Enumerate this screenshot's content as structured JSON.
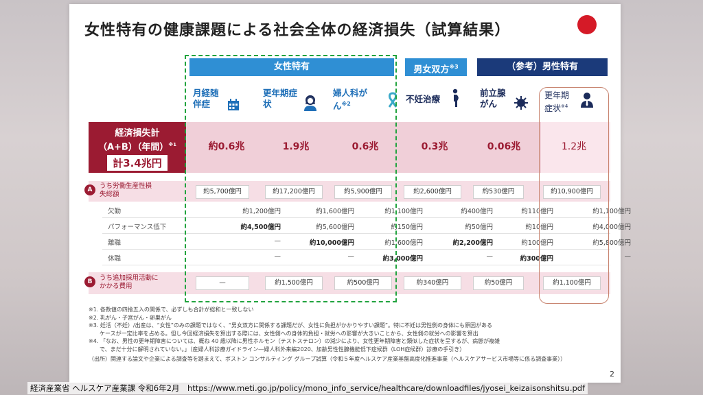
{
  "title": "女性特有の健康課題による社会全体の経済損失（試算結果）",
  "headers": {
    "female": "女性特有",
    "both": "男女双方",
    "both_note": "※3",
    "male": "（参考）男性特有"
  },
  "subheaders": [
    {
      "text": "月経随伴症",
      "note": "",
      "icon": "calendar-icon"
    },
    {
      "text": "更年期症状",
      "note": "",
      "icon": "woman-icon"
    },
    {
      "text": "婦人科がん",
      "note": "※2",
      "icon": "ribbon-icon"
    },
    {
      "text": "不妊治療",
      "note": "",
      "icon": "pregnant-icon"
    },
    {
      "text": "前立腺がん",
      "note": "",
      "icon": "virus-icon"
    },
    {
      "text": "更年期症状",
      "note": "※4",
      "icon": "man-icon"
    }
  ],
  "total": {
    "label1": "経済損失計",
    "label2": "（A+B）（年間）",
    "label_note": "※1",
    "sum": "計3.4兆円",
    "values": [
      "約0.6兆",
      "1.9兆",
      "0.6兆",
      "0.3兆",
      "0.06兆",
      "1.2兆"
    ]
  },
  "rowA": {
    "badge": "A",
    "label": "うち労働生産性損失総額",
    "values": [
      "約5,700億円",
      "約17,200億円",
      "約5,900億円",
      "約2,600億円",
      "約530億円",
      "約10,900億円"
    ]
  },
  "subrows": [
    {
      "name": "欠勤",
      "values": [
        "約1,200億円",
        "約1,600億円",
        "約1,100億円",
        "約400億円",
        "約110億円",
        "約1,100億円"
      ]
    },
    {
      "name": "パフォーマンス低下",
      "values": [
        "約4,500億円",
        "約5,600億円",
        "約150億円",
        "約50億円",
        "約10億円",
        "約4,000億円"
      ]
    },
    {
      "name": "離職",
      "values": [
        "—",
        "約10,000億円",
        "約1,600億円",
        "約2,200億円",
        "約100億円",
        "約5,800億円"
      ]
    },
    {
      "name": "休職",
      "values": [
        "—",
        "—",
        "約3,000億円",
        "—",
        "約300億円",
        "—"
      ]
    }
  ],
  "rowB": {
    "badge": "B",
    "label": "うち追加採用活動にかかる費用",
    "values": [
      "—",
      "約1,500億円",
      "約500億円",
      "約340億円",
      "約50億円",
      "約1,100億円"
    ]
  },
  "notes": [
    "※1. 各数値の四捨五入の関係で、必ずしも合計が総和と一致しない",
    "※2. 乳がん・子宮がん・卵巣がん",
    "※3. 妊活（不妊）/出産は、“女性”のみの課題ではなく、“男女双方に関係する課題だが、女性に負担がかかりやすい課題”。特に不妊は男性側の身体にも原因がある",
    "　　ケースが一定比率を占める。但し今回経済損失を算出する際には、女性側への身体的負担・就労への影響が大きいことから、女性側の就労への影響を算出",
    "※4. 「なお、男性の更年期障害については、概ね 40 歳以降に男性ホルモン（テストステロン）の減少により、女性更年期障害と類似した症状を呈するが、病態が複雑",
    "　　で、まだ十分に解明されていない。」（産婦人科診療ガイドライン―婦人科外来編2020、加齢男性性腺機能低下症候群（LOH症候群）診療の手引き）",
    "（出所）関連する論文や企業による調査等を踏まえて、ボストン コンサルティング グループ試算（令和５年度ヘルスケア産業基盤高度化推進事業（ヘルスケアサービス市場等に係る調査事業））"
  ],
  "page_number": "2",
  "footer": "経済産業省 ヘルスケア産業課 令和6年2月　https://www.meti.go.jp/policy/mono_info_service/healthcare/downloadfiles/jyosei_keizaisonshitsu.pdf",
  "colors": {
    "female_blue": "#2f8fd4",
    "male_navy": "#1b3a7a",
    "loss_red": "#9b1b32",
    "dash_green": "#21a33e"
  }
}
